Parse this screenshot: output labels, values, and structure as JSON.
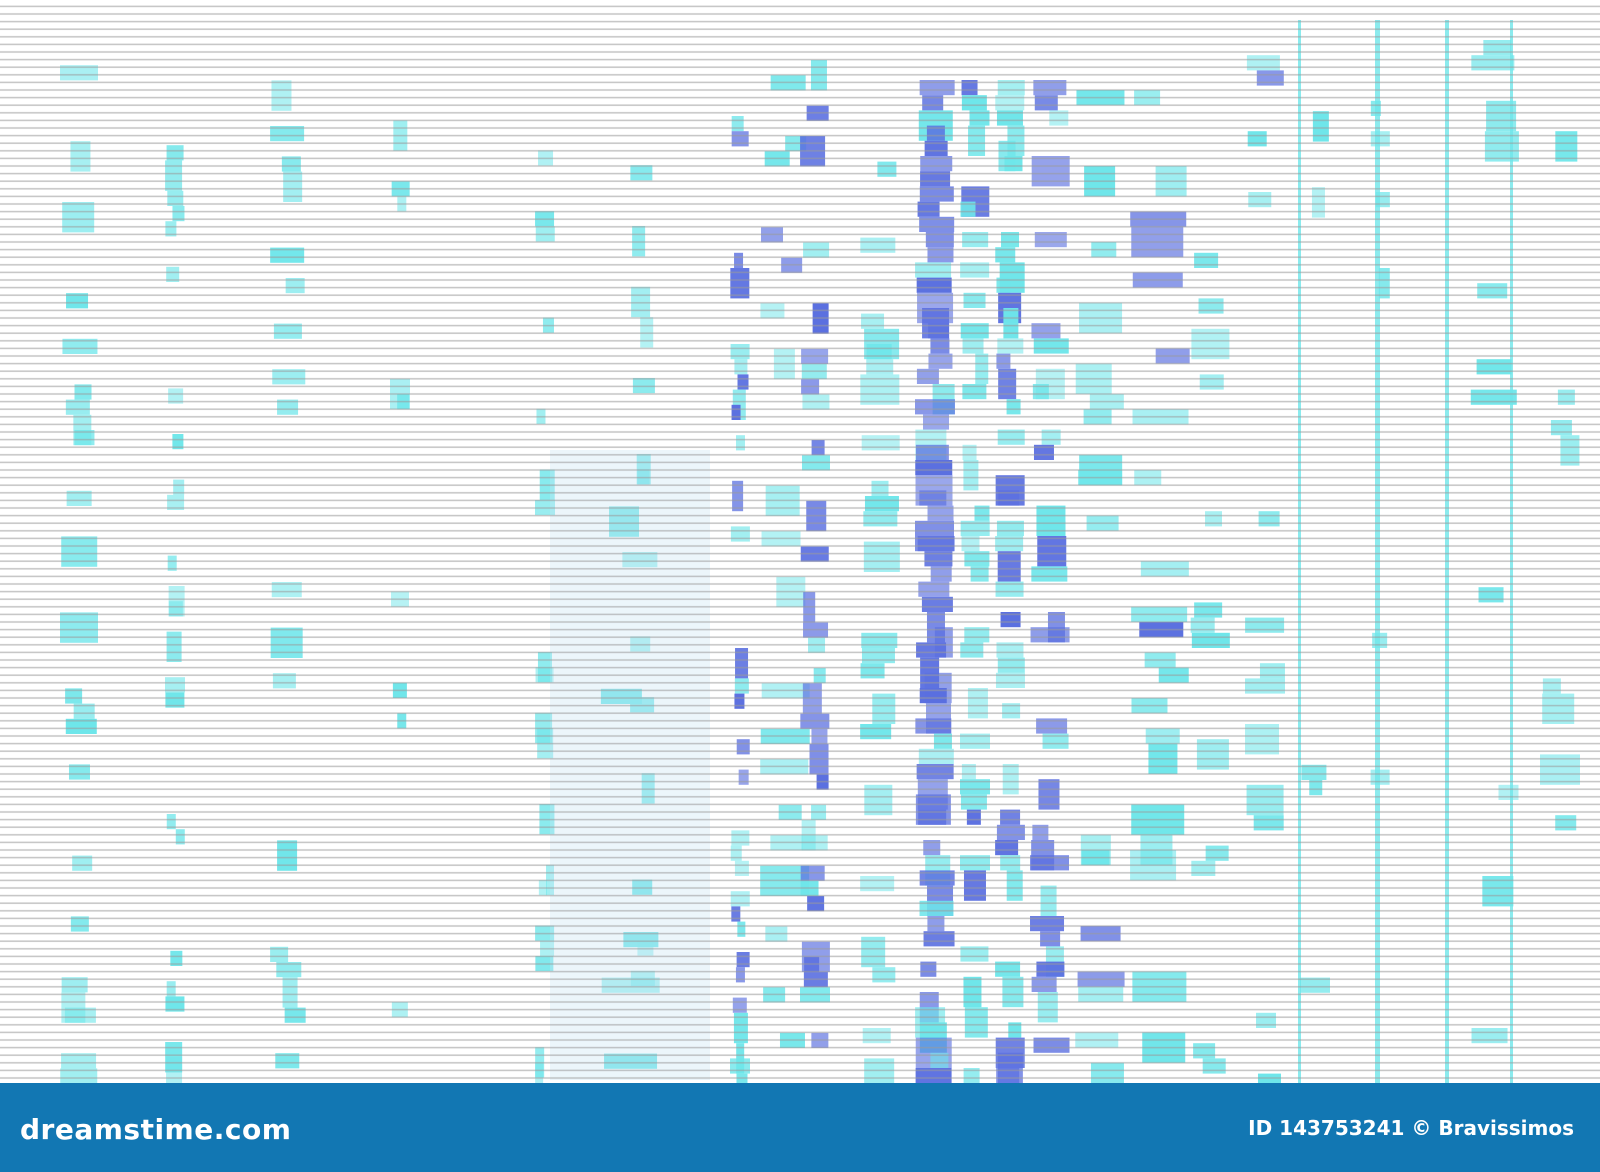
{
  "footer": {
    "logo": "dreamstime.com",
    "id": "ID 143753241",
    "credit": "© Bravissimos"
  }
}
